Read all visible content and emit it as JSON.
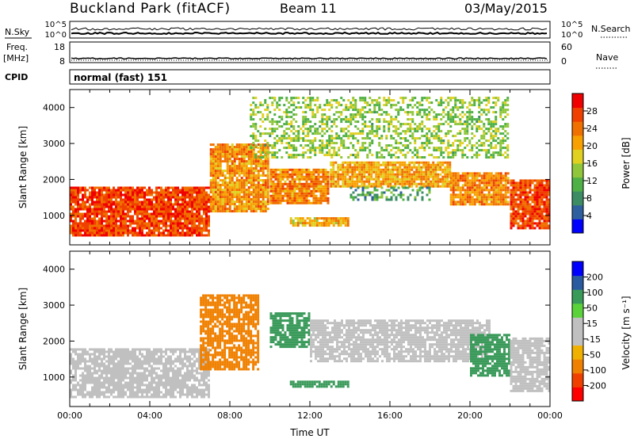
{
  "header": {
    "station": "Buckland Park (fitACF)",
    "beam": "Beam 11",
    "date": "03/May/2015"
  },
  "status_panels": {
    "nsky_label": "N.Sky",
    "nsky_ticks": [
      "10^5",
      "10^0"
    ],
    "nsearch_label": "N.Search",
    "nsearch_ticks": [
      "10^5",
      "10^0"
    ],
    "freq_label_1": "Freq.",
    "freq_label_2": "[MHz]",
    "freq_ticks": [
      "18",
      "8"
    ],
    "nave_label": "Nave",
    "nave_ticks": [
      "60",
      "0"
    ],
    "cpid_label": "CPID",
    "cpid_value": "normal (fast) 151"
  },
  "colors": {
    "power_scale": [
      "#0000ff",
      "#2e5f9e",
      "#3c8c64",
      "#4fb046",
      "#8fc63a",
      "#e0d020",
      "#f8a000",
      "#f07000",
      "#f04000",
      "#f00000"
    ],
    "velocity_scale": [
      "#ff0000",
      "#f04000",
      "#f08000",
      "#f0b000",
      "#c0c0c0",
      "#c0c0c0",
      "#5ad23a",
      "#3a9a5a",
      "#2a5aa0",
      "#0000ff"
    ]
  },
  "chart_data": [
    {
      "type": "heatmap",
      "name": "power",
      "ylabel": "Slant Range [km]",
      "y_ticks": [
        "1000",
        "2000",
        "3000",
        "4000"
      ],
      "ylim": [
        180,
        4500
      ],
      "colorbar_label": "Power [dB]",
      "colorbar_ticks": [
        "4",
        "8",
        "12",
        "16",
        "20",
        "24",
        "28"
      ],
      "colorbar_range": [
        0,
        32
      ],
      "regions": [
        {
          "t": [
            0,
            7
          ],
          "r": [
            400,
            1800
          ],
          "v": 27
        },
        {
          "t": [
            7,
            10
          ],
          "r": [
            1100,
            3000
          ],
          "v": 22
        },
        {
          "t": [
            10,
            13
          ],
          "r": [
            1300,
            2300
          ],
          "v": 23
        },
        {
          "t": [
            13,
            19
          ],
          "r": [
            1800,
            2500
          ],
          "v": 21
        },
        {
          "t": [
            14,
            18
          ],
          "r": [
            1400,
            1800
          ],
          "v": 10
        },
        {
          "t": [
            19,
            22
          ],
          "r": [
            1300,
            2200
          ],
          "v": 23
        },
        {
          "t": [
            22,
            24
          ],
          "r": [
            600,
            2000
          ],
          "v": 27
        },
        {
          "t": [
            11,
            14
          ],
          "r": [
            700,
            950
          ],
          "v": 20
        },
        {
          "t": [
            9,
            22
          ],
          "r": [
            2600,
            4300
          ],
          "v": 14
        }
      ]
    },
    {
      "type": "heatmap",
      "name": "velocity",
      "xlabel": "Time UT",
      "ylabel": "Slant Range [km]",
      "x_ticks": [
        "00:00",
        "04:00",
        "08:00",
        "12:00",
        "16:00",
        "20:00",
        "00:00"
      ],
      "xlim": [
        0,
        24
      ],
      "y_ticks": [
        "1000",
        "2000",
        "3000",
        "4000"
      ],
      "ylim": [
        180,
        4500
      ],
      "colorbar_label": "Velocity [m s⁻¹]",
      "colorbar_ticks": [
        "200",
        "100",
        "50",
        "15",
        "-15",
        "-50",
        "-100",
        "-200"
      ],
      "regions": [
        {
          "t": [
            0,
            7
          ],
          "r": [
            400,
            1800
          ],
          "v": 0
        },
        {
          "t": [
            6.5,
            9.5
          ],
          "r": [
            1200,
            3300
          ],
          "v": -60
        },
        {
          "t": [
            10,
            12
          ],
          "r": [
            1800,
            2800
          ],
          "v": 60
        },
        {
          "t": [
            12,
            21
          ],
          "r": [
            1400,
            2600
          ],
          "v": 0
        },
        {
          "t": [
            11,
            14
          ],
          "r": [
            700,
            900
          ],
          "v": 60
        },
        {
          "t": [
            20,
            22
          ],
          "r": [
            1000,
            2200
          ],
          "v": 60
        },
        {
          "t": [
            22,
            24
          ],
          "r": [
            600,
            2100
          ],
          "v": 0
        }
      ]
    }
  ]
}
